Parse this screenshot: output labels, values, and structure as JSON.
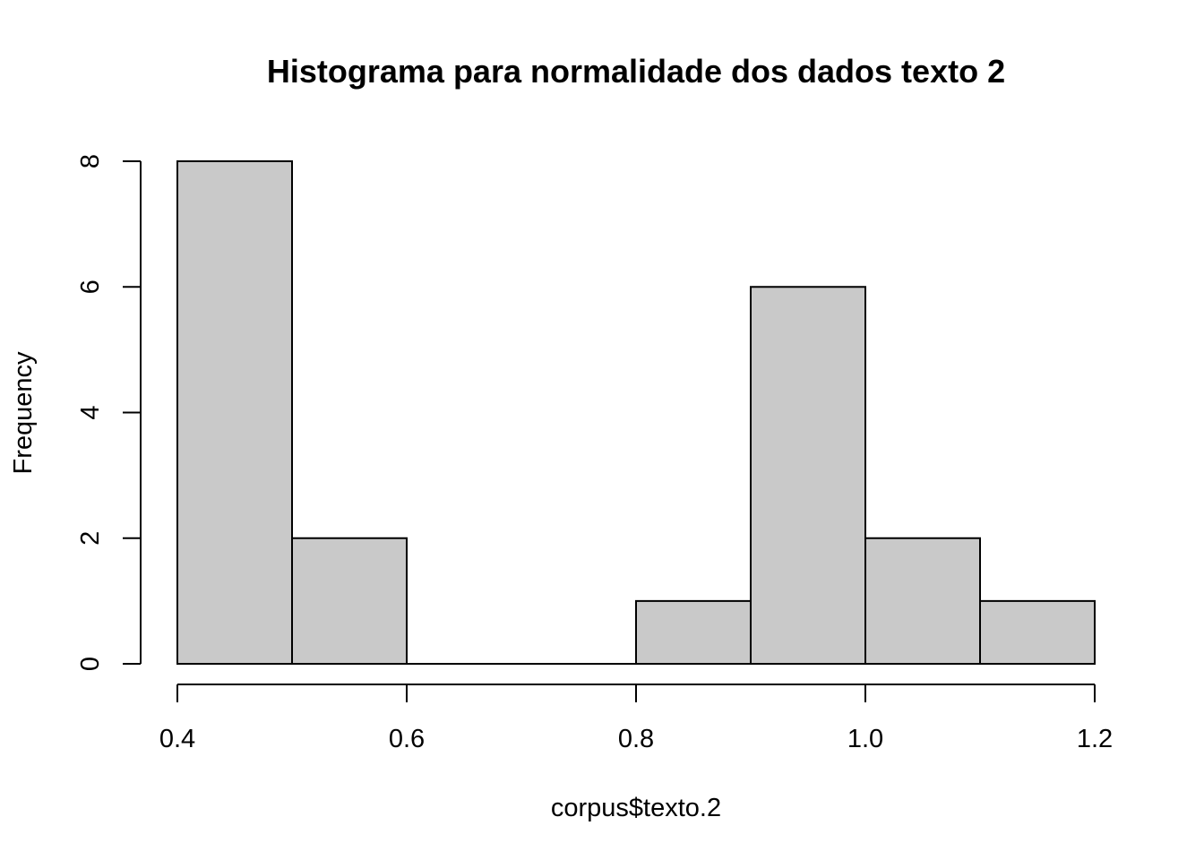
{
  "chart_data": {
    "type": "bar",
    "subtype": "histogram",
    "title": "Histograma para normalidade dos dados  texto 2",
    "xlabel": "corpus$texto.2",
    "ylabel": "Frequency",
    "bins": [
      {
        "start": 0.4,
        "end": 0.5,
        "count": 8
      },
      {
        "start": 0.5,
        "end": 0.6,
        "count": 2
      },
      {
        "start": 0.6,
        "end": 0.7,
        "count": 0
      },
      {
        "start": 0.7,
        "end": 0.8,
        "count": 0
      },
      {
        "start": 0.8,
        "end": 0.9,
        "count": 1
      },
      {
        "start": 0.9,
        "end": 1.0,
        "count": 6
      },
      {
        "start": 1.0,
        "end": 1.1,
        "count": 2
      },
      {
        "start": 1.1,
        "end": 1.2,
        "count": 1
      }
    ],
    "xlim": [
      0.4,
      1.2
    ],
    "ylim": [
      0,
      8
    ],
    "x_ticks": [
      {
        "value": 0.4,
        "label": "0.4"
      },
      {
        "value": 0.6,
        "label": "0.6"
      },
      {
        "value": 0.8,
        "label": "0.8"
      },
      {
        "value": 1.0,
        "label": "1.0"
      },
      {
        "value": 1.2,
        "label": "1.2"
      }
    ],
    "y_ticks": [
      {
        "value": 0,
        "label": "0"
      },
      {
        "value": 2,
        "label": "2"
      },
      {
        "value": 4,
        "label": "4"
      },
      {
        "value": 6,
        "label": "6"
      },
      {
        "value": 8,
        "label": "8"
      }
    ],
    "grid": false,
    "legend": "none",
    "colors": {
      "bar_fill": "#c9c9c9",
      "bar_stroke": "#000000",
      "axis": "#000000"
    }
  }
}
